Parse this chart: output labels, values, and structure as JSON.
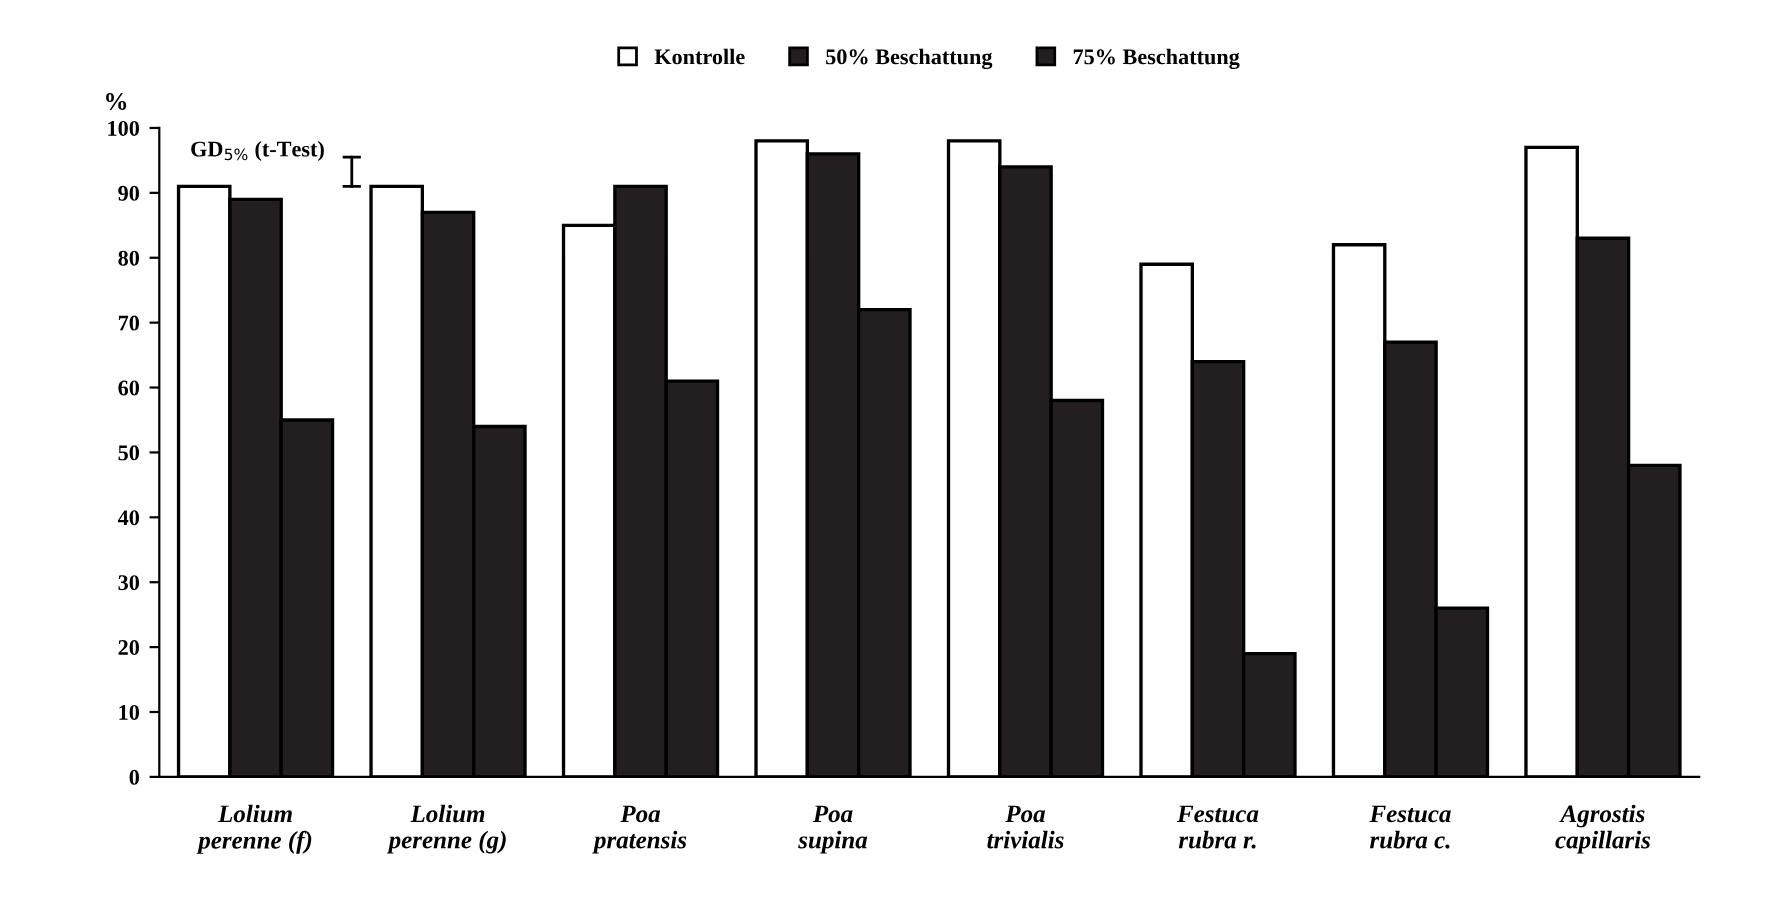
{
  "chart_data": {
    "type": "bar",
    "ylabel": "%",
    "categories": [
      "Lolium\nperenne (f)",
      "Lolium\nperenne (g)",
      "Poa\npratensis",
      "Poa\nsupina",
      "Poa\ntrivialis",
      "Festuca\nrubra r.",
      "Festuca\nrubra c.",
      "Agrostis\ncapillaris"
    ],
    "series": [
      {
        "name": "Kontrolle",
        "color": "#ffffff",
        "values": [
          91,
          91,
          85,
          98,
          98,
          79,
          82,
          97
        ]
      },
      {
        "name": "50% Beschattung",
        "color": "#231f20",
        "values": [
          89,
          87,
          91,
          96,
          94,
          64,
          67,
          83
        ]
      },
      {
        "name": "75% Beschattung",
        "color": "#231f20",
        "values": [
          55,
          54,
          61,
          72,
          58,
          19,
          26,
          48
        ]
      }
    ],
    "annotations": [
      "GD$_{5%}$ (t-Test)"
    ],
    "ylim": [
      0,
      100
    ],
    "yticks": [
      0,
      10,
      20,
      30,
      40,
      50,
      60,
      70,
      80,
      90,
      100
    ],
    "legend": "top",
    "grid": false
  }
}
